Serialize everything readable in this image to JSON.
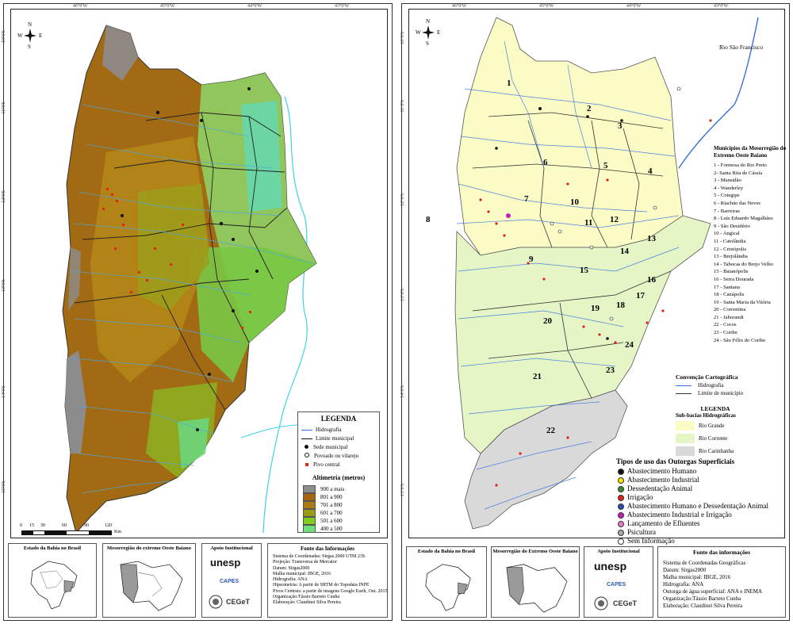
{
  "left_map": {
    "top_ticks": [
      "46°0'W",
      "45°0'W",
      "44°0'W",
      "43°0'W"
    ],
    "side_ticks": [
      "10°0'S",
      "11°0'S",
      "12°0'S",
      "13°0'S",
      "14°0'S",
      "15°0'S"
    ],
    "north": {
      "n": "N",
      "s": "S",
      "e": "E",
      "w": "W"
    },
    "legend": {
      "title": "LEGENDA",
      "items": [
        "Hidrografia",
        "Limite municipal",
        "Sede municipal",
        "Povoado ou vilarejo",
        "Pivo central"
      ],
      "alt_title": "Altimetria (metros)",
      "alt_classes": [
        {
          "label": "900 a mais",
          "color": "#8c8c8c"
        },
        {
          "label": "801 a 900",
          "color": "#a8650f"
        },
        {
          "label": "701 a 800",
          "color": "#b27a10"
        },
        {
          "label": "601 a 700",
          "color": "#9c9c14"
        },
        {
          "label": "501 a 600",
          "color": "#7fcc1a"
        },
        {
          "label": "400 a 500",
          "color": "#6ee07a"
        }
      ]
    },
    "scale": {
      "ticks": [
        "0",
        "15",
        "30",
        "60",
        "90",
        "120"
      ],
      "unit": "Km"
    },
    "insets": {
      "brazil_title": "Estado da Bahia no Brasil",
      "meso_title": "Mesorregião do extremo Oeste Baiano"
    },
    "support": {
      "title": "Apoio Institucional",
      "logos": [
        "unesp",
        "CAPES",
        "CEGeT"
      ]
    },
    "source": {
      "title": "Fonte das Informações",
      "lines": [
        "Sistema de Coordenadas: Sirgas 2000 UTM 23S",
        "Projeção: Transversa de Mercator",
        "Datum: Sirgas2000",
        "Malha municipal: IBGE, 2016",
        "Hidrografia: ANA",
        "Hipsometria: A partir de SRTM do Topodata INPE",
        "Pivos Centrais: a partir de imagens Google Earth, Out. 2015",
        "Organização:Tássio Barreto Cunha",
        "Elaboração: Claudinei Silva Pereira"
      ]
    }
  },
  "right_map": {
    "top_ticks": [
      "46°0'W",
      "45°0'W",
      "44°0'W",
      "43°0'W"
    ],
    "side_ticks": [
      "10°0'S",
      "11°0'S",
      "12°0'S",
      "13°0'S",
      "14°0'S",
      "15°0'S"
    ],
    "north": {
      "n": "N",
      "s": "S",
      "e": "E",
      "w": "W"
    },
    "river_label": "Rio São Francisco",
    "numbers": [
      "1",
      "2",
      "3",
      "4",
      "5",
      "6",
      "7",
      "8",
      "9",
      "10",
      "11",
      "12",
      "13",
      "14",
      "15",
      "16",
      "17",
      "18",
      "19",
      "20",
      "21",
      "22",
      "23",
      "24"
    ],
    "municipios_title": "Municípios da Mesorregião do Extremo Oeste Baiano",
    "municipios": [
      "1 - Formosa do Rio Preto",
      "2- Santa Rita de Cássia",
      "3 - Mansidão",
      "4 - Wanderley",
      "5 - Cotegipe",
      "6 - Riachão das Neves",
      "7 - Barreiras",
      "8 - Luís Eduardo Magalhães",
      "9 - São Desidério",
      "10 - Angical",
      "11 - Catolândia",
      "12 - Cristópolis",
      "13 - Brejolândia",
      "14 - Tabocas do Brejo Velho",
      "15 - Baianópolis",
      "16 - Serra Dourada",
      "17 - Santana",
      "18 - Canápolis",
      "19 - Santa Maria da Vitória",
      "20 - Correntina",
      "21 - Jaborandi",
      "22 - Cocos",
      "23 - Coribe",
      "24 - São Félix do Coribe"
    ],
    "convencao": {
      "title": "Convenção Cartográfica",
      "items": [
        "Hidrografia",
        "Limite de município"
      ]
    },
    "legenda": {
      "title": "LEGENDA",
      "subtitle": "Sub-bacias Hidrográficas",
      "items": [
        {
          "label": "Rio Grande",
          "color": "#fbfbc6"
        },
        {
          "label": "Rio Corrente",
          "color": "#e6f5c6"
        },
        {
          "label": "Rio Carinhanha",
          "color": "#d9d9d9"
        }
      ]
    },
    "usos": {
      "title": "Tipos de uso das Outorgas Superficiais",
      "items": [
        {
          "label": "Abastecimento Humano",
          "color": "#111111"
        },
        {
          "label": "Abastecimento Industrial",
          "color": "#f5e600"
        },
        {
          "label": "Dessedentação Animal",
          "color": "#3a8a2a"
        },
        {
          "label": "Irrigação",
          "color": "#e0201a"
        },
        {
          "label": "Abastecimento Humano e Dessedentação Animal",
          "color": "#2a4ab0"
        },
        {
          "label": "Abastecimento Industrial e Irrigação",
          "color": "#c020c0"
        },
        {
          "label": "Lançamento de Efluentes",
          "color": "#e87ac8"
        },
        {
          "label": "Psicultura",
          "color": "#a8a8a8"
        },
        {
          "label": "Sem Informação",
          "color": "#ffffff"
        }
      ]
    },
    "insets": {
      "brazil_title": "Estado da Bahia no Brasil",
      "meso_title": "Mesorregião do Extremo Oeste Baiano"
    },
    "support": {
      "title": "Apoio Institucional",
      "logos": [
        "unesp",
        "CAPES",
        "CEGeT"
      ]
    },
    "source": {
      "title": "Fonte das informações",
      "lines": [
        "Sistema de Coordenadas Geográficas",
        "Datum: Sirgas2000",
        "Malha municipal: IBGE, 2016",
        "Hidrografia: ANA",
        "Outorga de água superficial: ANA e INEMA",
        "Organização:Tássio Barreto Cunha",
        "Elaboração: Claudinei Silva Pereira"
      ]
    }
  }
}
